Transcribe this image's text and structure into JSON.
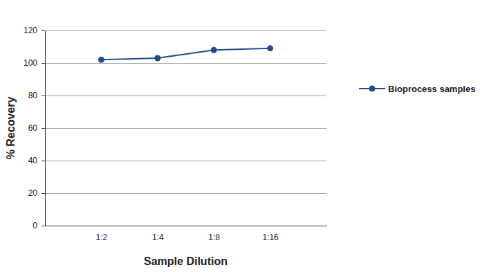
{
  "chart_data": {
    "type": "line",
    "x_label": "Sample Dilution",
    "y_label": "% Recovery",
    "categories": [
      "1:2",
      "1:4",
      "1:8",
      "1:16"
    ],
    "series": [
      {
        "name": "Bioprocess samples",
        "color": "#1f4e8c",
        "values": [
          102,
          103,
          108,
          109
        ],
        "marker": "circle",
        "line_style": "solid"
      }
    ],
    "ylim": [
      0,
      120
    ],
    "yticks": [
      0,
      20,
      40,
      60,
      80,
      100,
      120
    ],
    "grid": true,
    "legend": "right"
  }
}
